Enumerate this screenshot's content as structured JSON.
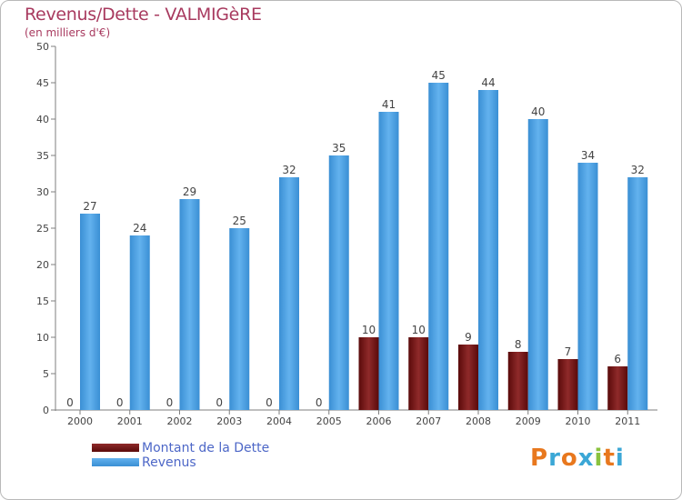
{
  "header": {
    "title": "Revenus/Dette - VALMIGèRE",
    "subtitle": "(en milliers d'€)"
  },
  "legend": {
    "items": [
      {
        "label": "Montant de la Dette",
        "color": "#7a1010"
      },
      {
        "label": "Revenus",
        "color": "#4a9fe0"
      }
    ]
  },
  "logo": {
    "letters": [
      "P",
      "r",
      "o",
      "x",
      "i",
      "t",
      "i"
    ],
    "colors": [
      "#e8781e",
      "#3ba7d6",
      "#e8781e",
      "#3ba7d6",
      "#8ac23e",
      "#e8781e",
      "#3ba7d6"
    ]
  },
  "chart_data": {
    "type": "bar",
    "categories": [
      "2000",
      "2001",
      "2002",
      "2003",
      "2004",
      "2005",
      "2006",
      "2007",
      "2008",
      "2009",
      "2010",
      "2011"
    ],
    "series": [
      {
        "name": "Montant de la Dette",
        "color": "#7a1010",
        "values": [
          0,
          0,
          0,
          0,
          0,
          0,
          10,
          10,
          9,
          8,
          7,
          6
        ]
      },
      {
        "name": "Revenus",
        "color": "#4a9fe0",
        "values": [
          27,
          24,
          29,
          25,
          32,
          35,
          41,
          45,
          44,
          40,
          34,
          32
        ]
      }
    ],
    "yticks": [
      0,
      5,
      10,
      15,
      20,
      25,
      30,
      35,
      40,
      45,
      50
    ],
    "ylim": [
      0,
      50
    ],
    "grid": false
  }
}
